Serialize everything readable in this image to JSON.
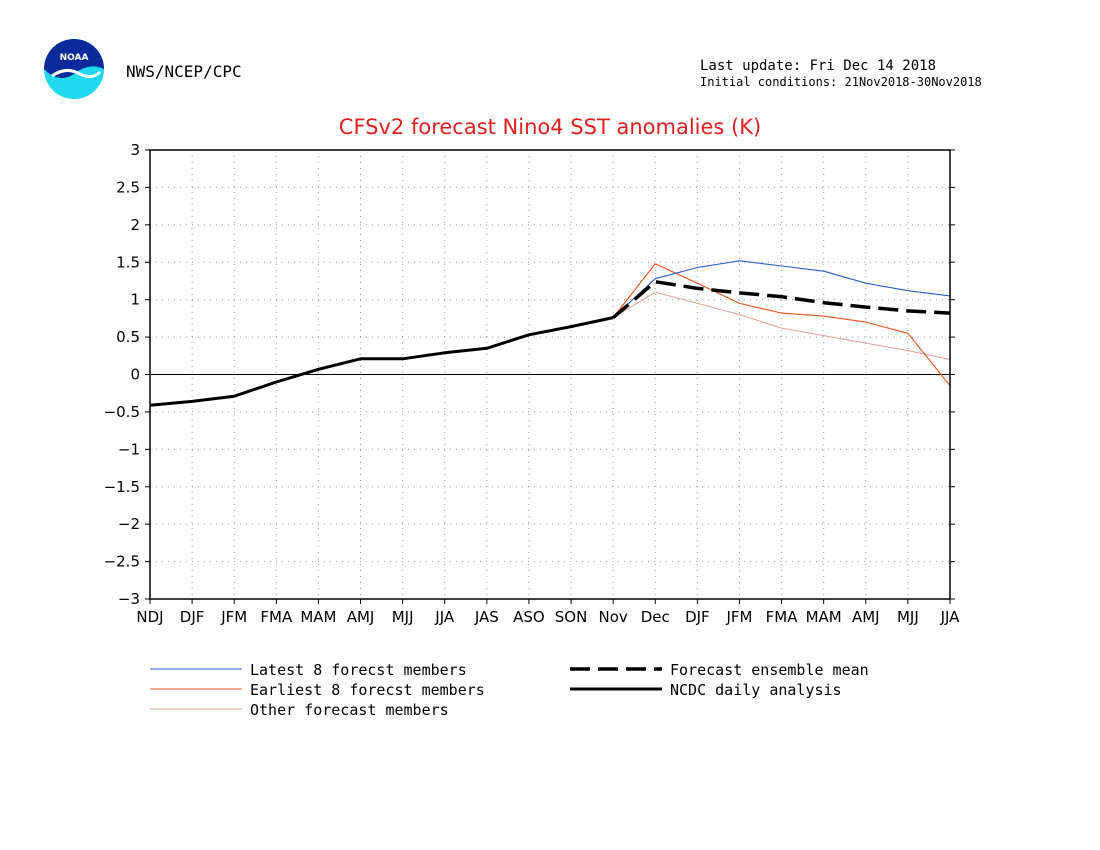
{
  "header": {
    "org": "NWS/NCEP/CPC",
    "logo_text": "NOAA",
    "last_update": "Last update: Fri Dec 14 2018",
    "initial_conditions": "Initial conditions: 21Nov2018-30Nov2018"
  },
  "colors": {
    "title": "#dd1f1f",
    "latest": "#2a5bcc",
    "earliest": "#e8501a",
    "other": "#e0a090",
    "mean": "#000000",
    "analysis": "#000000",
    "grid": "#999999"
  },
  "chart_data": {
    "type": "line",
    "title": "CFSv2 forecast Nino4 SST anomalies (K)",
    "xlabel": "",
    "ylabel": "",
    "categories": [
      "NDJ",
      "DJF",
      "JFM",
      "FMA",
      "MAM",
      "AMJ",
      "MJJ",
      "JJA",
      "JAS",
      "ASO",
      "SON",
      "Nov",
      "Dec",
      "DJF",
      "JFM",
      "FMA",
      "MAM",
      "AMJ",
      "MJJ",
      "JJA"
    ],
    "ylim": [
      -3,
      3
    ],
    "yticks": [
      "3",
      "2.5",
      "2",
      "1.5",
      "1",
      "0.5",
      "0",
      "−0.5",
      "−1",
      "−1.5",
      "−2",
      "−2.5",
      "−3"
    ],
    "grid": true,
    "legend_position": "bottom",
    "series": [
      {
        "name": "NCDC daily analysis",
        "style": "solid-thick",
        "values": [
          -0.41,
          -0.36,
          -0.29,
          -0.1,
          0.07,
          0.21,
          0.21,
          0.29,
          0.35,
          0.53,
          0.64,
          0.76,
          null,
          null,
          null,
          null,
          null,
          null,
          null,
          null
        ]
      },
      {
        "name": "Forecast ensemble mean",
        "style": "dashed-thick",
        "values": [
          null,
          null,
          null,
          null,
          null,
          null,
          null,
          null,
          null,
          null,
          null,
          0.76,
          1.24,
          1.15,
          1.09,
          1.04,
          0.96,
          0.9,
          0.85,
          0.82
        ]
      },
      {
        "name": "Latest 8 forecst members",
        "style": "thin",
        "values": [
          null,
          null,
          null,
          null,
          null,
          null,
          null,
          null,
          null,
          null,
          null,
          0.76,
          1.28,
          1.43,
          1.52,
          1.45,
          1.38,
          1.22,
          1.12,
          1.05
        ]
      },
      {
        "name": "Earliest 8 forecst members",
        "style": "thin",
        "values": [
          null,
          null,
          null,
          null,
          null,
          null,
          null,
          null,
          null,
          null,
          null,
          0.76,
          1.48,
          1.22,
          0.95,
          0.82,
          0.78,
          0.7,
          0.55,
          -0.15
        ]
      },
      {
        "name": "Other forecast members",
        "style": "thin",
        "values": [
          null,
          null,
          null,
          null,
          null,
          null,
          null,
          null,
          null,
          null,
          null,
          0.76,
          1.1,
          0.95,
          0.8,
          0.62,
          0.52,
          0.42,
          0.32,
          0.2
        ]
      }
    ]
  },
  "legend": {
    "latest": "Latest 8 forecst members",
    "earliest": "Earliest 8 forecst members",
    "other": "Other forecast members",
    "mean": "Forecast ensemble mean",
    "analysis": "NCDC daily analysis"
  }
}
